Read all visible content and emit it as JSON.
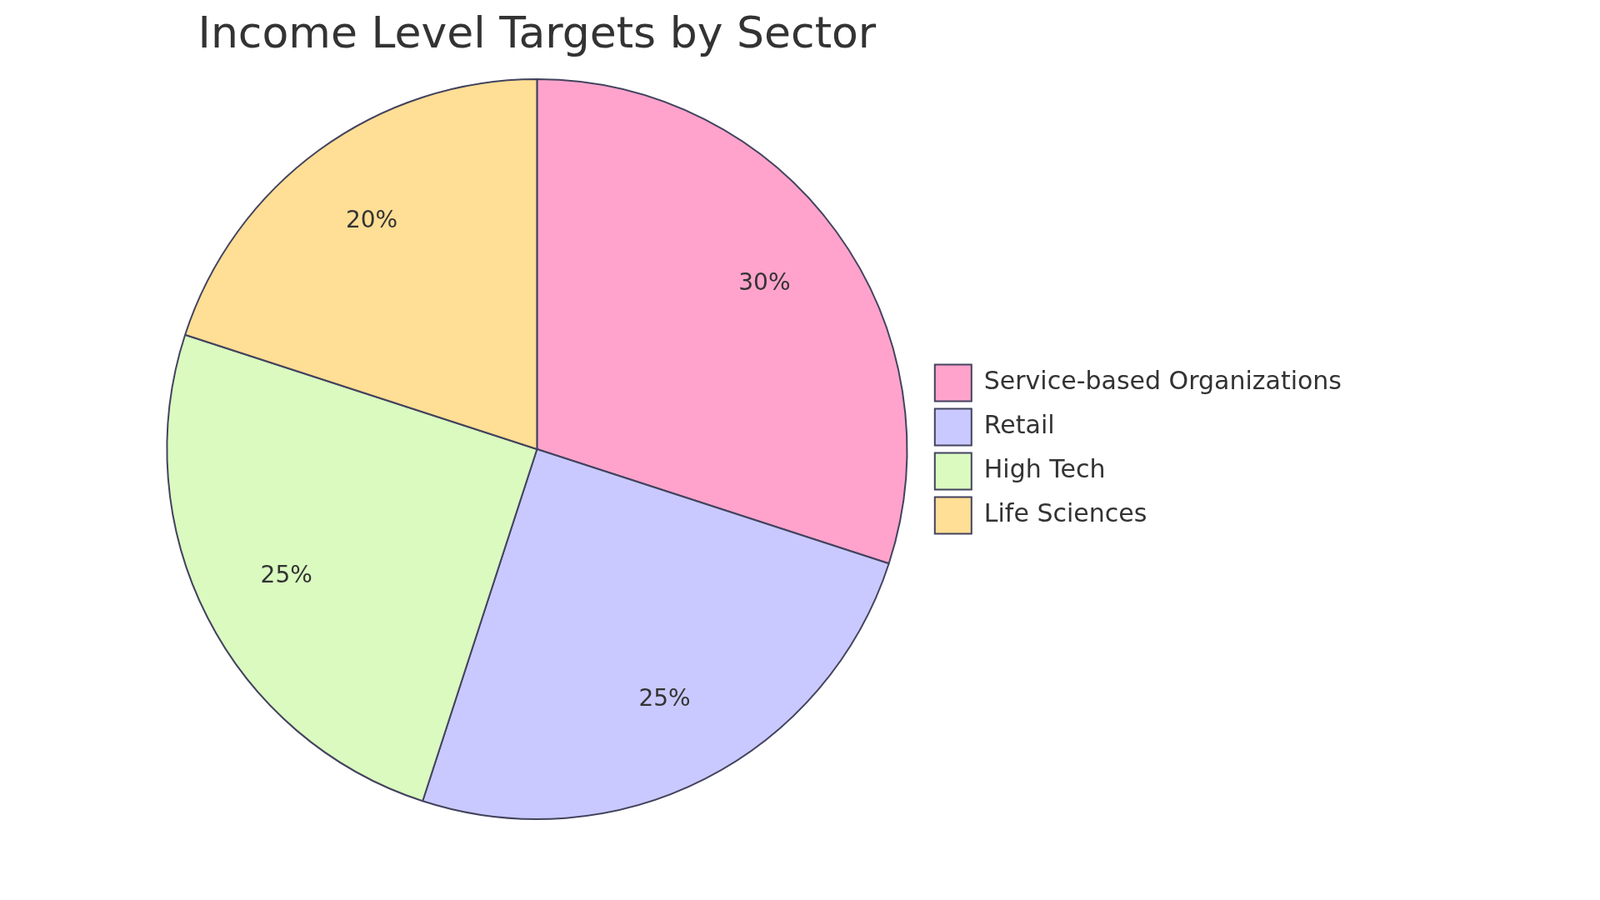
{
  "chart_data": {
    "type": "pie",
    "title": "Income Level Targets by Sector",
    "categories": [
      "Service-based Organizations",
      "Retail",
      "High Tech",
      "Life Sciences"
    ],
    "values": [
      30,
      25,
      25,
      20
    ],
    "value_labels": [
      "30%",
      "25%",
      "25%",
      "20%"
    ],
    "colors": [
      "#ffa3cc",
      "#c9c9ff",
      "#dafac0",
      "#ffde95"
    ],
    "legend": "right",
    "data_labels": true
  }
}
